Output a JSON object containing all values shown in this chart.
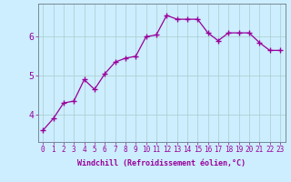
{
  "x": [
    0,
    1,
    2,
    3,
    4,
    5,
    6,
    7,
    8,
    9,
    10,
    11,
    12,
    13,
    14,
    15,
    16,
    17,
    18,
    19,
    20,
    21,
    22,
    23
  ],
  "y": [
    3.6,
    3.9,
    4.3,
    4.35,
    4.9,
    4.65,
    5.05,
    5.35,
    5.45,
    5.5,
    6.0,
    6.05,
    6.55,
    6.45,
    6.45,
    6.45,
    6.1,
    5.9,
    6.1,
    6.1,
    6.1,
    5.85,
    5.65,
    5.65
  ],
  "line_color": "#990099",
  "marker": "+",
  "markersize": 4,
  "linewidth": 0.9,
  "background_color": "#cceeff",
  "grid_color": "#aacccc",
  "xlabel": "Windchill (Refroidissement éolien,°C)",
  "xlabel_fontsize": 6,
  "xlabel_color": "#990099",
  "ylabel_ticks": [
    4,
    5,
    6
  ],
  "ytick_color": "#990099",
  "xtick_color": "#990099",
  "xtick_labels": [
    "0",
    "1",
    "2",
    "3",
    "4",
    "5",
    "6",
    "7",
    "8",
    "9",
    "10",
    "11",
    "12",
    "13",
    "14",
    "15",
    "16",
    "17",
    "18",
    "19",
    "20",
    "21",
    "22",
    "23"
  ],
  "xlim": [
    -0.5,
    23.5
  ],
  "ylim": [
    3.3,
    6.85
  ],
  "tick_fontsize": 5.5,
  "ytick_fontsize": 7,
  "grid_alpha": 1.0
}
